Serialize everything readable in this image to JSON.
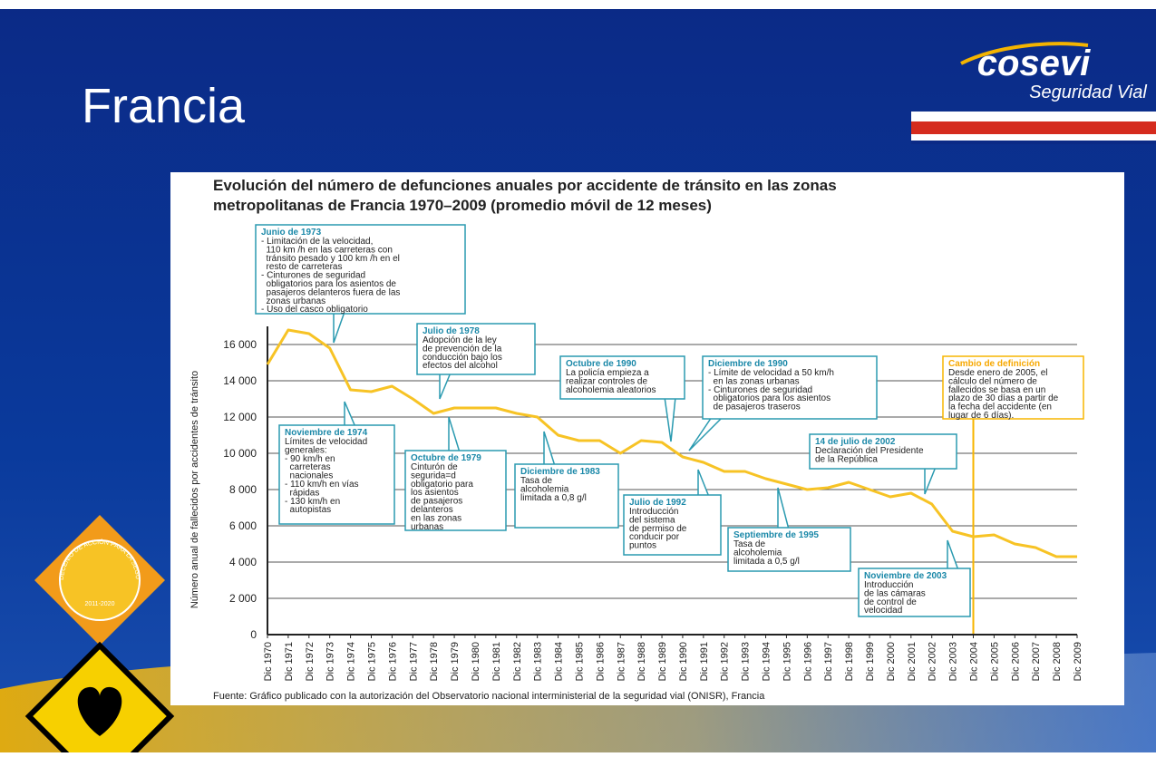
{
  "slide": {
    "title": "Francia",
    "logo": {
      "brand": "cosevi",
      "tagline": "Seguridad Vial"
    },
    "badge": {
      "ring": "DECENIO DE ACCIÓN PARA LA SEGURIDAD VIAL",
      "years": "2011-2020"
    }
  },
  "chart_data": {
    "type": "line",
    "title": [
      "Evolución del número de defunciones anuales por accidente de tránsito en las zonas",
      "metropolitanas de Francia 1970–2009 (promedio móvil de 12 meses)"
    ],
    "y_label": "Número anual de fallecidos por accidentes de tránsito",
    "source": "Fuente: Gráfico publicado con la autorización del Observatorio nacional interministerial de la seguridad vial (ONISR), Francia",
    "categories": [
      "Dic 1970",
      "Dic 1971",
      "Dic 1972",
      "Dic 1973",
      "Dic 1974",
      "Dic 1975",
      "Dic 1976",
      "Dic 1977",
      "Dic 1978",
      "Dic 1979",
      "Dic 1980",
      "Dic 1981",
      "Dic 1982",
      "Dic 1983",
      "Dic 1984",
      "Dic 1985",
      "Dic 1986",
      "Dic 1987",
      "Dic 1988",
      "Dic 1989",
      "Dic 1990",
      "Dic 1991",
      "Dic 1992",
      "Dic 1993",
      "Dic 1994",
      "Dic 1995",
      "Dic 1996",
      "Dic 1997",
      "Dic 1998",
      "Dic 1999",
      "Dic 2000",
      "Dic 2001",
      "Dic 2002",
      "Dic 2003",
      "Dic 2004",
      "Dic 2005",
      "Dic 2006",
      "Dic 2007",
      "Dic 2008",
      "Dic 2009"
    ],
    "series": [
      {
        "name": "Fallecidos",
        "color": "#f7c325",
        "values": [
          14900,
          16800,
          16600,
          15800,
          13500,
          13400,
          13700,
          13000,
          12200,
          12500,
          12500,
          12500,
          12200,
          12000,
          11000,
          10700,
          10700,
          10000,
          10700,
          10600,
          9800,
          9500,
          9000,
          9000,
          8600,
          8300,
          8000,
          8100,
          8400,
          8000,
          7600,
          7800,
          7200,
          5700,
          5400,
          5500,
          5000,
          4800,
          4300,
          4300
        ]
      }
    ],
    "ylim": [
      0,
      17000
    ],
    "yticks": [
      0,
      {
        "value": 2000,
        "label": "2 000"
      },
      {
        "value": 4000,
        "label": "4 000"
      },
      {
        "value": 6000,
        "label": "6 000"
      },
      {
        "value": 8000,
        "label": "8 000"
      },
      {
        "value": 10000,
        "label": "10 000"
      },
      {
        "value": 12000,
        "label": "12 000"
      },
      {
        "value": 14000,
        "label": "14 000"
      },
      {
        "value": 16000,
        "label": "16 000"
      }
    ],
    "grid": true,
    "annotations": [
      {
        "title": "Junio de 1973",
        "lines": [
          "- Limitación de la velocidad,",
          "  110 km /h en las carreteras con",
          "  tránsito pesado y 100 km /h en el",
          "  resto de carreteras",
          "- Cinturones de seguridad",
          "  obligatorios para los asientos de",
          "  pasajeros delanteros fuera de las",
          "  zonas urbanas",
          "- Uso del casco obligatorio"
        ]
      },
      {
        "title": "Julio de 1978",
        "lines": [
          "Adopción de la ley",
          "de prevención de la",
          "conducción bajo los",
          "efectos del alcohol"
        ]
      },
      {
        "title": "Octubre de 1990",
        "lines": [
          "La policía empieza a",
          "realizar controles de",
          "alcoholemia aleatorios"
        ]
      },
      {
        "title": "Diciembre de 1990",
        "lines": [
          "- Límite de velocidad a 50 km/h",
          "  en las zonas urbanas",
          "- Cinturones de seguridad",
          "  obligatorios para los asientos",
          "  de pasajeros traseros"
        ]
      },
      {
        "title": "Cambio de definición",
        "lines": [
          "Desde enero de 2005, el",
          "cálculo del número de",
          "fallecidos se basa en un",
          "plazo de 30 días a partir de",
          "la fecha del accidente (en",
          "lugar de 6 días)."
        ]
      },
      {
        "title": "Noviembre de 1974",
        "lines": [
          "Límites de velocidad",
          "generales:",
          "- 90 km/h en",
          "  carreteras",
          "  nacionales",
          "- 110 km/h en vías",
          "  rápidas",
          "- 130 km/h en",
          "  autopistas"
        ]
      },
      {
        "title": "Octubre de 1979",
        "lines": [
          "Cinturón de",
          "segurida=d",
          "obligatorio para",
          "los asientos",
          "de pasajeros",
          "delanteros",
          "en las zonas",
          "urbanas"
        ]
      },
      {
        "title": "Diciembre de 1983",
        "lines": [
          "Tasa de",
          "alcoholemia",
          "limitada a 0,8 g/l"
        ]
      },
      {
        "title": "Julio de 1992",
        "lines": [
          "Introducción",
          "del sistema",
          "de permiso de",
          "conducir por",
          "puntos"
        ]
      },
      {
        "title": "Septiembre de 1995",
        "lines": [
          "Tasa de",
          "alcoholemia",
          "limitada a 0,5 g/l"
        ]
      },
      {
        "title": "14 de julio de 2002",
        "lines": [
          "Declaración del Presidente",
          "de la República"
        ]
      },
      {
        "title": "Noviembre de 2003",
        "lines": [
          "Introducción",
          "de las cámaras",
          "de control de",
          "velocidad"
        ]
      }
    ]
  }
}
